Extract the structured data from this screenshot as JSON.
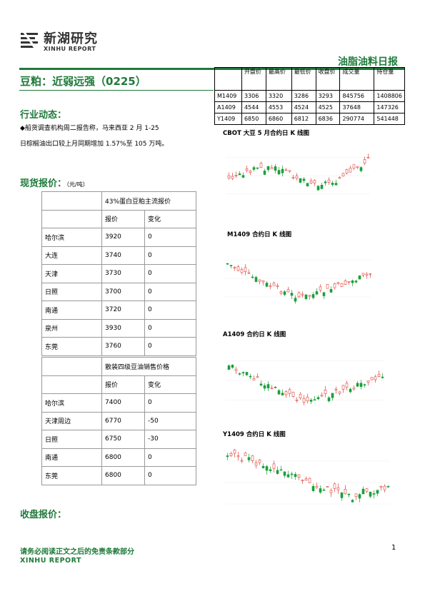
{
  "header": {
    "logo_cn": "新湖研究",
    "logo_en": "XINHU REPORT",
    "report_type": "油脂油料日报"
  },
  "article": {
    "title": "豆粕：近弱远强（0225）",
    "section_news": "行业动态：",
    "news_text_line1": "◆船货调查机构周二报告称，马来西亚 2 月 1-25",
    "news_text_line2": "日棕榈油出口较上月同期增加 1.57%至 105 万吨。",
    "section_spot": "现货报价：",
    "spot_unit": "（元/吨）",
    "section_close": "收盘报价："
  },
  "quote_table": {
    "headers": [
      "",
      "开盘价",
      "最高价",
      "最低价",
      "收盘价",
      "成交量",
      "持仓量"
    ],
    "rows": [
      [
        "M1409",
        "3306",
        "3320",
        "3286",
        "3293",
        "845756",
        "1408806"
      ],
      [
        "A1409",
        "4544",
        "4553",
        "4524",
        "4525",
        "37648",
        "147326"
      ],
      [
        "Y1409",
        "6850",
        "6860",
        "6812",
        "6836",
        "290774",
        "541448"
      ]
    ]
  },
  "spot_table_1": {
    "title": "43%蛋白豆粕主流报价",
    "col_price": "报价",
    "col_change": "变化",
    "rows": [
      {
        "city": "哈尔滨",
        "price": "3920",
        "change": "0"
      },
      {
        "city": "大连",
        "price": "3740",
        "change": "0"
      },
      {
        "city": "天津",
        "price": "3730",
        "change": "0"
      },
      {
        "city": "日照",
        "price": "3700",
        "change": "0"
      },
      {
        "city": "南通",
        "price": "3720",
        "change": "0"
      },
      {
        "city": "泉州",
        "price": "3930",
        "change": "0"
      },
      {
        "city": "东莞",
        "price": "3760",
        "change": "0"
      }
    ]
  },
  "spot_table_2": {
    "title": "散装四级豆油销售价格",
    "col_price": "报价",
    "col_change": "变化",
    "rows": [
      {
        "city": "哈尔滨",
        "price": "7400",
        "change": "0"
      },
      {
        "city": "天津周边",
        "price": "6770",
        "change": "-50"
      },
      {
        "city": "日照",
        "price": "6750",
        "change": "-30"
      },
      {
        "city": "南通",
        "price": "6800",
        "change": "0"
      },
      {
        "city": "东莞",
        "price": "6800",
        "change": "0"
      }
    ]
  },
  "charts": {
    "cbot_title": "CBOT 大豆 5 月合约日 K 线图",
    "m_title": "M1409 合约日 K 线图",
    "a_title": "A1409 合约日 K 线图",
    "y_title": "Y1409 合约日 K 线图"
  },
  "footer": {
    "disclaimer": "请务必阅读正文之后的免责条款部分",
    "brand": "XINHU REPORT",
    "page_number": "1"
  },
  "colors": {
    "accent": "#1f7a3a",
    "up": "#e0443a",
    "down": "#19a03a"
  }
}
